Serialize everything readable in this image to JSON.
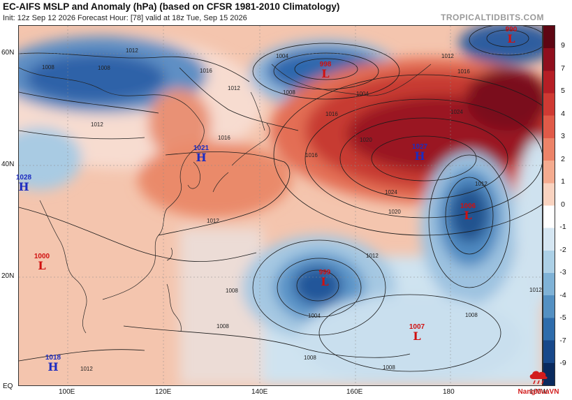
{
  "header": {
    "title": "EC-AIFS MSLP and Anomaly (hPa) (based on CFSR 1981-2010 Climatology)",
    "subtitle": "Init: 12z Sep 12 2026   Forecast Hour: [78]   valid at 18z Tue, Sep 15 2026",
    "brand": "TROPICALTIDBITS.COM"
  },
  "map": {
    "lat_labels": [
      "60N",
      "40N",
      "20N",
      "EQ"
    ],
    "lon_labels": [
      "100E",
      "120E",
      "140E",
      "160E",
      "180",
      "160W"
    ]
  },
  "colorbar": {
    "labels": [
      "9",
      "7",
      "5",
      "4",
      "3",
      "2",
      "1",
      "0",
      "-1",
      "-2",
      "-3",
      "-4",
      "-5",
      "-7",
      "-9"
    ],
    "colors": [
      "#5e0613",
      "#8f0f1d",
      "#b51e25",
      "#cf3a33",
      "#e05a48",
      "#ec8368",
      "#f4ab8f",
      "#f9d3c0",
      "#ffffff",
      "#d5e6f2",
      "#acd0e6",
      "#7fb2d6",
      "#5490c2",
      "#2f6cab",
      "#18488a",
      "#0a2a5e"
    ]
  },
  "pressure_systems": [
    {
      "id": "low-998",
      "type": "L",
      "value": "998",
      "color": "#d01010"
    },
    {
      "id": "low-990",
      "type": "L",
      "value": "990",
      "color": "#d01010"
    },
    {
      "id": "high-1027",
      "type": "H",
      "value": "1027",
      "color": "#1c2cc0"
    },
    {
      "id": "high-1021",
      "type": "H",
      "value": "1021",
      "color": "#1c2cc0"
    },
    {
      "id": "high-1028",
      "type": "H",
      "value": "1028",
      "color": "#1c2cc0"
    },
    {
      "id": "low-1006",
      "type": "L",
      "value": "1006",
      "color": "#d01010"
    },
    {
      "id": "low-1000",
      "type": "L",
      "value": "1000",
      "color": "#d01010"
    },
    {
      "id": "low-999",
      "type": "L",
      "value": "999",
      "color": "#d01010"
    },
    {
      "id": "low-1007",
      "type": "L",
      "value": "1007",
      "color": "#d01010"
    },
    {
      "id": "high-1018",
      "type": "H",
      "value": "1018",
      "color": "#1c2cc0"
    }
  ],
  "isobar_labels": [
    "1012",
    "1008",
    "1004",
    "1016",
    "1012",
    "1016",
    "1012",
    "1004",
    "1008",
    "1016",
    "1020",
    "1024",
    "1016",
    "1012",
    "1020",
    "1024",
    "1012",
    "1008",
    "1012",
    "1016",
    "1012",
    "1008",
    "1004",
    "1008",
    "1008",
    "1012",
    "1008",
    "1012",
    "1008"
  ],
  "watermark": {
    "text": "NangMuaVN"
  }
}
